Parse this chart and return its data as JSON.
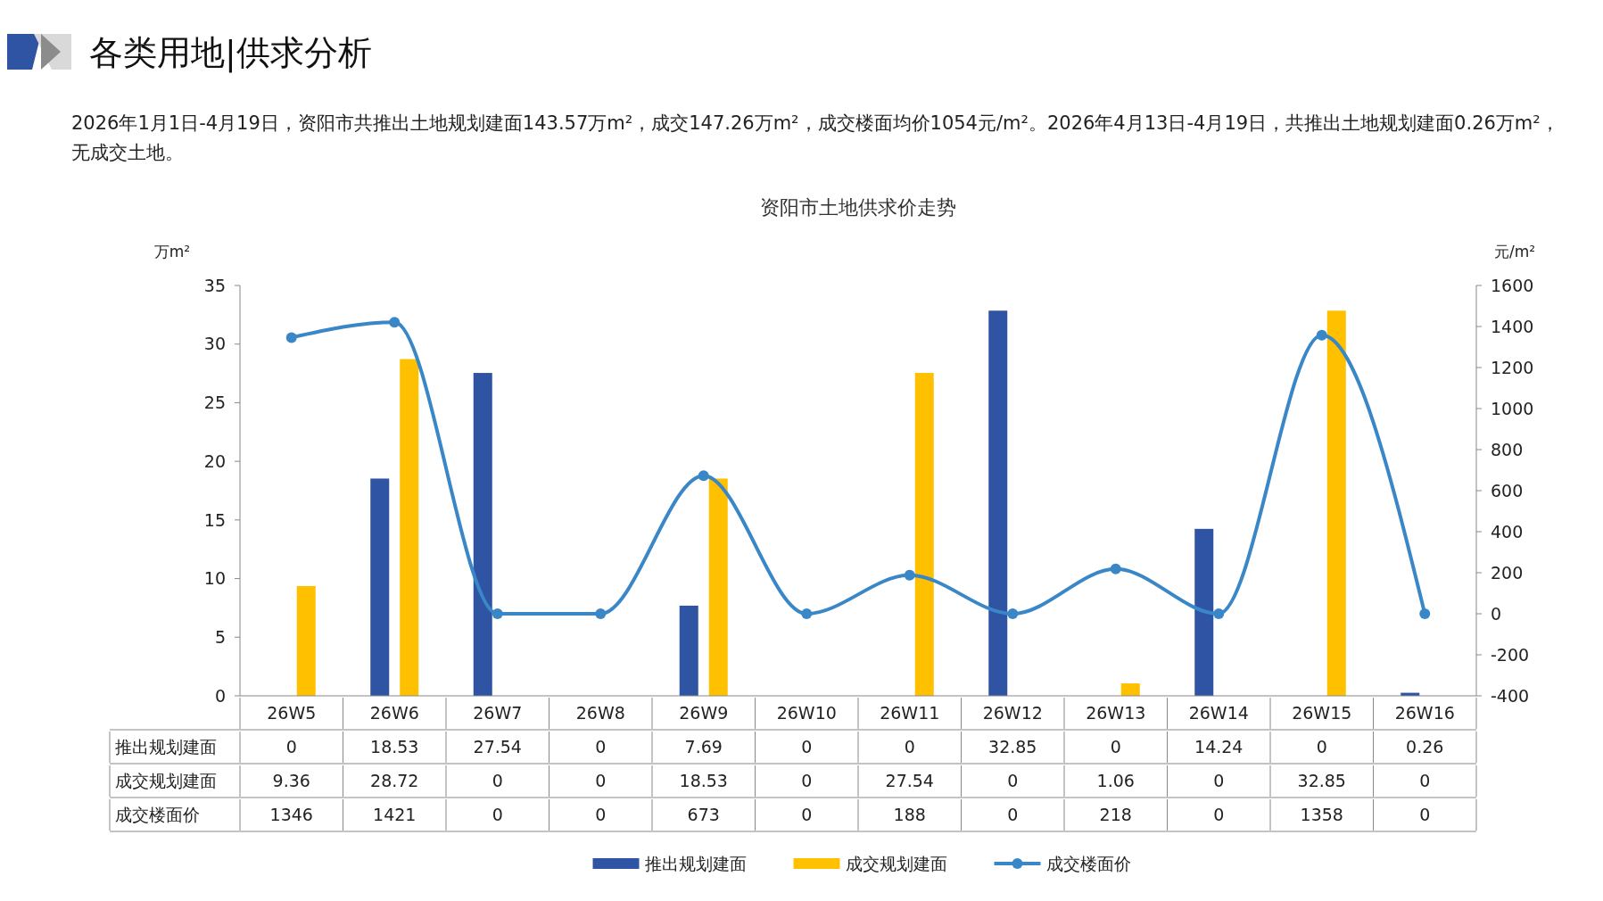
{
  "chart_data": {
    "type": "bar",
    "title": "资阳市土地供求价走势",
    "subtitle": "2026年1月1日-4月19日，资阳市共推出土地规划建面143.57万m²，成交147.26万m²，成交楼面均价1054元/m²。2026年4月13日-4月19日，共推出土地规划建面0.26万m²，无成交土地。",
    "annotations": [
      "各类用地|供求分析"
    ],
    "ylabel": "万m²",
    "y2label": "元/m²",
    "categories": [
      "26W5",
      "26W6",
      "26W7",
      "26W8",
      "26W9",
      "26W10",
      "26W11",
      "26W12",
      "26W13",
      "26W14",
      "26W15",
      "26W16"
    ],
    "series": [
      {
        "name": "推出规划建面",
        "color": "#2e54a3",
        "values": [
          0,
          18.53,
          27.54,
          0,
          7.69,
          0,
          0,
          32.85,
          0,
          14.24,
          0,
          0.26
        ]
      },
      {
        "name": "成交规划建面",
        "color": "#ffc000",
        "values": [
          9.36,
          28.72,
          0,
          0,
          18.53,
          0,
          27.54,
          0,
          1.06,
          0,
          32.85,
          0
        ]
      },
      {
        "name": "成交楼面价",
        "type": "line",
        "axis": "y2",
        "color": "#3a87c8",
        "values": [
          1346,
          1421,
          0,
          0,
          673,
          0,
          188,
          0,
          218,
          0,
          1358,
          0
        ]
      }
    ],
    "ylim": [
      0,
      35
    ],
    "yticks": [
      0,
      5,
      10,
      15,
      20,
      25,
      30,
      35
    ],
    "y2lim": [
      -400,
      1600
    ],
    "y2ticks": [
      -400,
      -200,
      0,
      200,
      400,
      600,
      800,
      1000,
      1200,
      1400,
      1600
    ],
    "data_labels": true,
    "legend": "bottom",
    "marker": "circle",
    "line_style": "solid",
    "grid": false
  }
}
